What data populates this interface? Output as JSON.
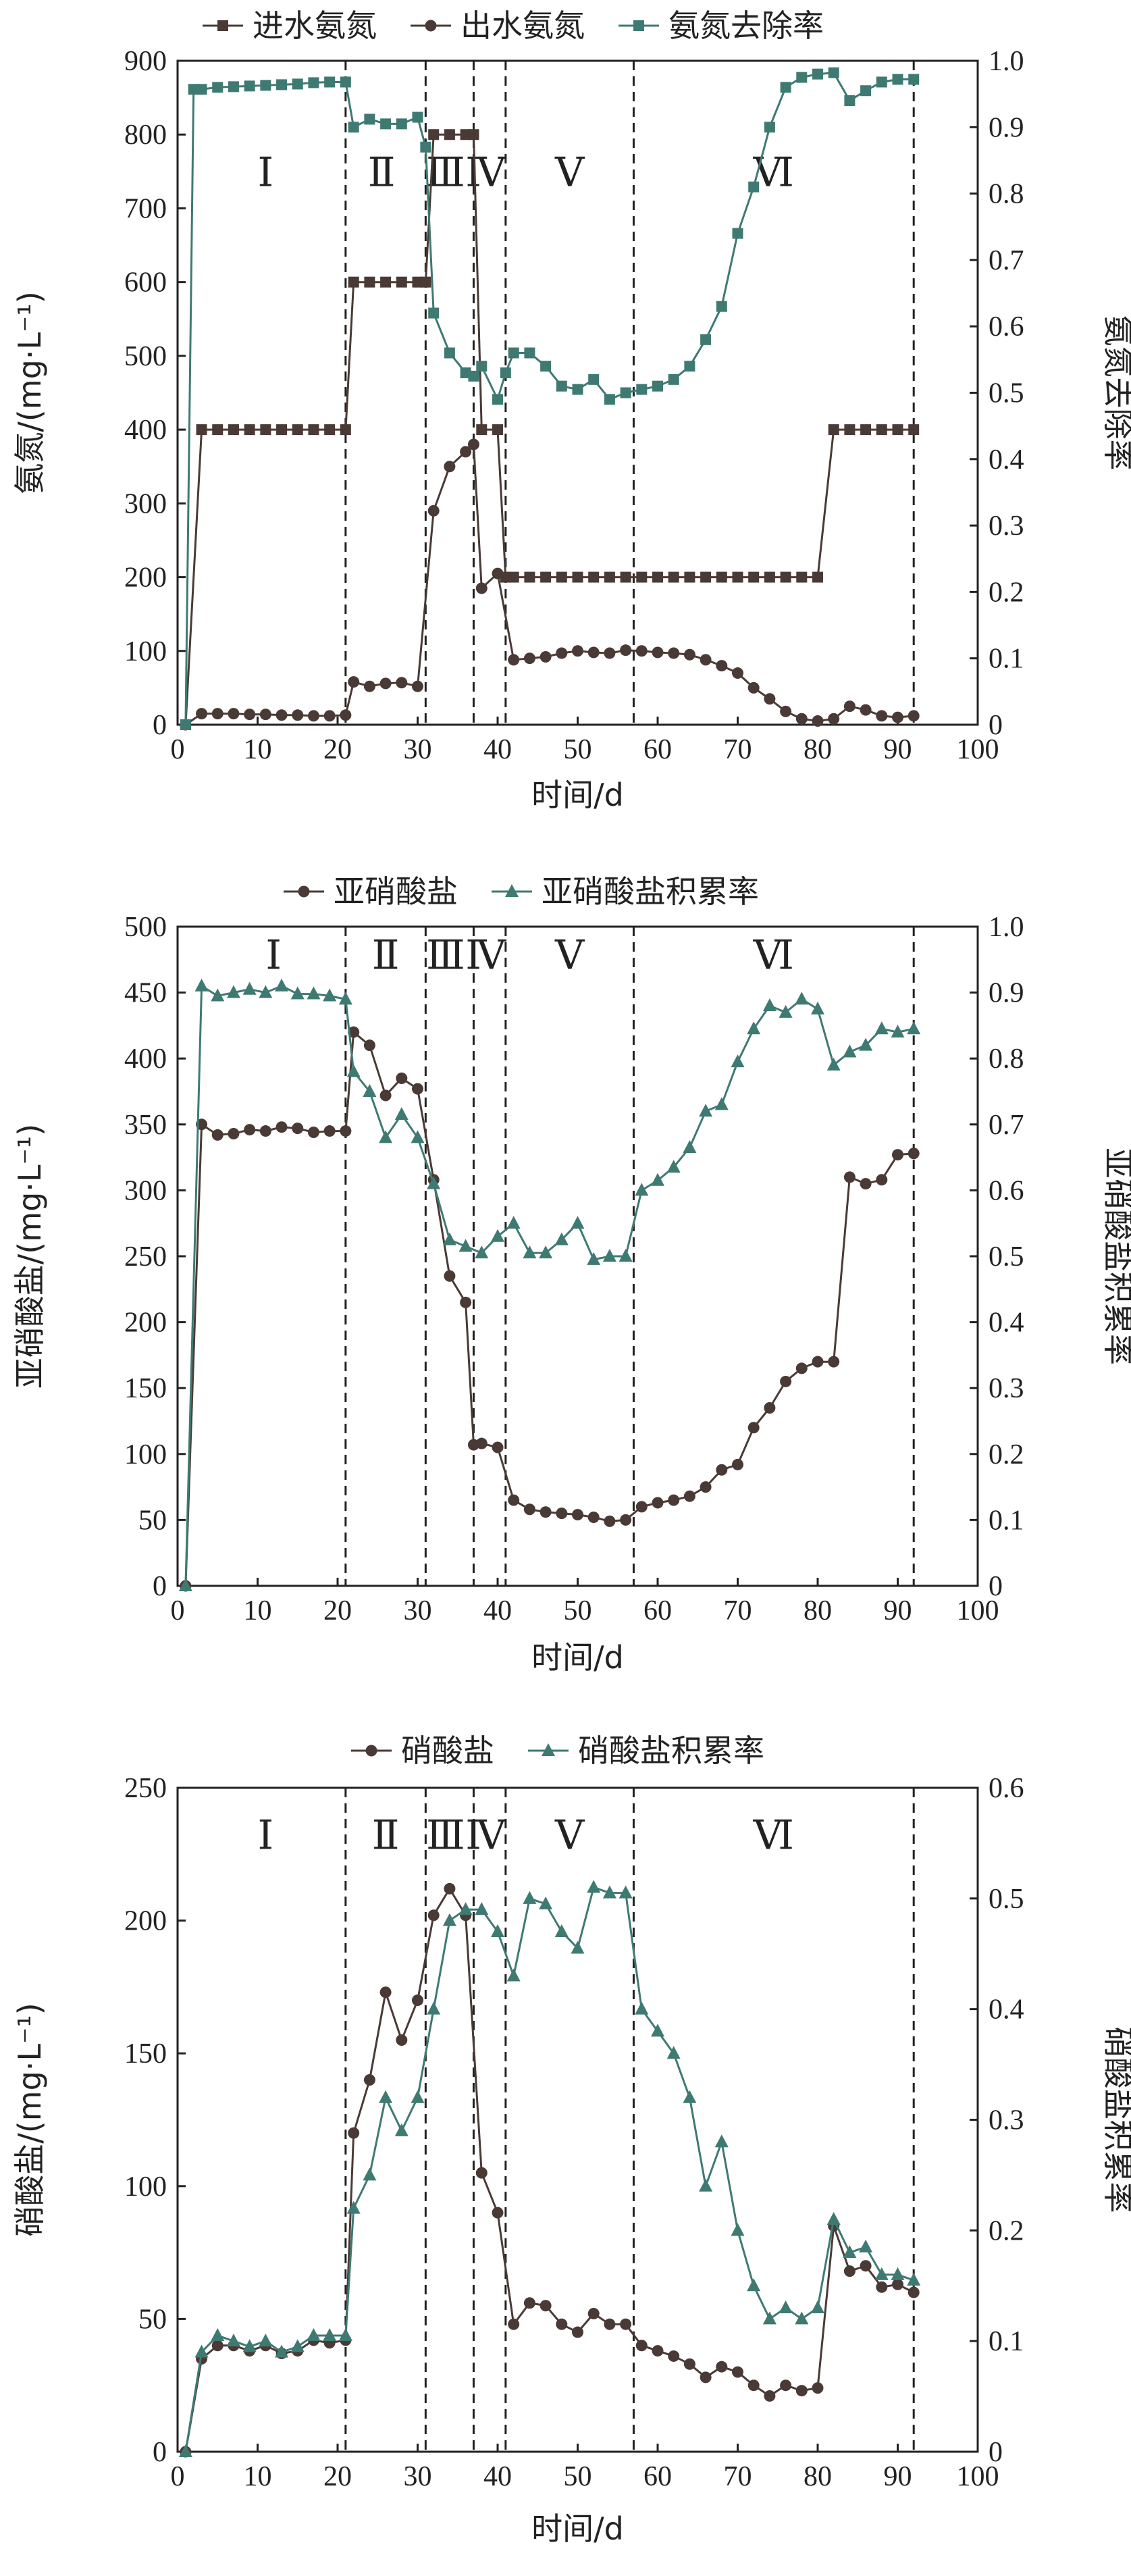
{
  "theme": {
    "color_dark": "#4a3a36",
    "color_teal": "#3f7a72",
    "color_axis": "#222222"
  },
  "chart_data": [
    {
      "type": "line",
      "xlabel": "时间/d",
      "ylabel": "氨氮/(mg·L⁻¹)",
      "ylabel_right": "氨氮去除率",
      "xlim": [
        0,
        100
      ],
      "ylim": [
        0,
        900
      ],
      "ylim_right": [
        0,
        1.0
      ],
      "x_ticks": [
        0,
        10,
        20,
        30,
        40,
        50,
        60,
        70,
        80,
        90,
        100
      ],
      "y_ticks": [
        0,
        100,
        200,
        300,
        400,
        500,
        600,
        700,
        800,
        900
      ],
      "y_right_ticks": [
        "0",
        "0.1",
        "0.2",
        "0.3",
        "0.4",
        "0.5",
        "0.6",
        "0.7",
        "0.8",
        "0.9",
        "1.0"
      ],
      "legend_position": "top",
      "phase_boundaries": [
        21,
        31,
        37,
        41,
        57,
        92
      ],
      "phase_labels": [
        {
          "label": "Ⅰ",
          "x": 11
        },
        {
          "label": "Ⅱ",
          "x": 25.5
        },
        {
          "label": "Ⅲ",
          "x": 33.5
        },
        {
          "label": "Ⅳ",
          "x": 38.5
        },
        {
          "label": "Ⅴ",
          "x": 49
        },
        {
          "label": "Ⅵ",
          "x": 74.5
        }
      ],
      "phase_label_y": 730,
      "series": [
        {
          "name": "进水氨氮",
          "axis": "left",
          "marker": "square",
          "color": "#4a3a36",
          "x": [
            1,
            3,
            5,
            7,
            9,
            11,
            13,
            15,
            17,
            19,
            21,
            22,
            24,
            26,
            28,
            30,
            31,
            32,
            34,
            36,
            37,
            38,
            40,
            41,
            42,
            44,
            46,
            48,
            50,
            52,
            54,
            56,
            58,
            60,
            62,
            64,
            66,
            68,
            70,
            72,
            74,
            76,
            78,
            80,
            82,
            84,
            86,
            88,
            90,
            92
          ],
          "y": [
            0,
            400,
            400,
            400,
            400,
            400,
            400,
            400,
            400,
            400,
            400,
            600,
            600,
            600,
            600,
            600,
            600,
            800,
            800,
            800,
            800,
            400,
            400,
            200,
            200,
            200,
            200,
            200,
            200,
            200,
            200,
            200,
            200,
            200,
            200,
            200,
            200,
            200,
            200,
            200,
            200,
            200,
            200,
            200,
            400,
            400,
            400,
            400,
            400,
            400
          ]
        },
        {
          "name": "出水氨氮",
          "axis": "left",
          "marker": "circle",
          "color": "#4a3a36",
          "x": [
            1,
            3,
            5,
            7,
            9,
            11,
            13,
            15,
            17,
            19,
            21,
            22,
            24,
            26,
            28,
            30,
            32,
            34,
            36,
            37,
            38,
            40,
            42,
            44,
            46,
            48,
            50,
            52,
            54,
            56,
            58,
            60,
            62,
            64,
            66,
            68,
            70,
            72,
            74,
            76,
            78,
            80,
            82,
            84,
            86,
            88,
            90,
            92
          ],
          "y": [
            0,
            15,
            15,
            15,
            14,
            14,
            13,
            13,
            12,
            12,
            13,
            58,
            52,
            56,
            57,
            52,
            290,
            350,
            370,
            380,
            185,
            205,
            88,
            90,
            92,
            97,
            100,
            98,
            97,
            101,
            100,
            98,
            97,
            95,
            88,
            80,
            70,
            50,
            35,
            18,
            8,
            5,
            8,
            25,
            20,
            12,
            10,
            12
          ]
        },
        {
          "name": "氨氮去除率",
          "axis": "right",
          "marker": "square",
          "color": "#3f7a72",
          "x": [
            1,
            2,
            3,
            5,
            7,
            9,
            11,
            13,
            15,
            17,
            19,
            21,
            22,
            24,
            26,
            28,
            30,
            31,
            32,
            34,
            36,
            37,
            38,
            40,
            41,
            42,
            44,
            46,
            48,
            50,
            52,
            54,
            56,
            58,
            60,
            62,
            64,
            66,
            68,
            70,
            72,
            74,
            76,
            78,
            80,
            82,
            84,
            86,
            88,
            90,
            92
          ],
          "y": [
            0,
            0.957,
            0.957,
            0.96,
            0.961,
            0.962,
            0.963,
            0.964,
            0.965,
            0.967,
            0.968,
            0.968,
            0.9,
            0.912,
            0.905,
            0.905,
            0.915,
            0.87,
            0.62,
            0.56,
            0.53,
            0.525,
            0.54,
            0.49,
            0.53,
            0.56,
            0.56,
            0.54,
            0.51,
            0.505,
            0.52,
            0.49,
            0.5,
            0.505,
            0.51,
            0.52,
            0.54,
            0.58,
            0.63,
            0.74,
            0.81,
            0.9,
            0.96,
            0.975,
            0.98,
            0.982,
            0.94,
            0.955,
            0.968,
            0.972,
            0.972
          ]
        }
      ]
    },
    {
      "type": "line",
      "xlabel": "时间/d",
      "ylabel": "亚硝酸盐/(mg·L⁻¹)",
      "ylabel_right": "亚硝酸盐积累率",
      "xlim": [
        0,
        100
      ],
      "ylim": [
        0,
        500
      ],
      "ylim_right": [
        0,
        1.0
      ],
      "x_ticks": [
        0,
        10,
        20,
        30,
        40,
        50,
        60,
        70,
        80,
        90,
        100
      ],
      "y_ticks": [
        0,
        50,
        100,
        150,
        200,
        250,
        300,
        350,
        400,
        450,
        500
      ],
      "y_right_ticks": [
        "0",
        "0.1",
        "0.2",
        "0.3",
        "0.4",
        "0.5",
        "0.6",
        "0.7",
        "0.8",
        "0.9",
        "1.0"
      ],
      "legend_position": "top",
      "phase_boundaries": [
        21,
        31,
        37,
        41,
        57,
        92
      ],
      "phase_labels": [
        {
          "label": "Ⅰ",
          "x": 12
        },
        {
          "label": "Ⅱ",
          "x": 26
        },
        {
          "label": "Ⅲ",
          "x": 33.5
        },
        {
          "label": "Ⅳ",
          "x": 38.5
        },
        {
          "label": "Ⅴ",
          "x": 49
        },
        {
          "label": "Ⅵ",
          "x": 74.5
        }
      ],
      "phase_label_y": 468,
      "series": [
        {
          "name": "亚硝酸盐",
          "axis": "left",
          "marker": "circle",
          "color": "#4a3a36",
          "x": [
            1,
            3,
            5,
            7,
            9,
            11,
            13,
            15,
            17,
            19,
            21,
            22,
            24,
            26,
            28,
            30,
            32,
            34,
            36,
            37,
            38,
            40,
            42,
            44,
            46,
            48,
            50,
            52,
            54,
            56,
            58,
            60,
            62,
            64,
            66,
            68,
            70,
            72,
            74,
            76,
            78,
            80,
            82,
            84,
            86,
            88,
            90,
            92
          ],
          "y": [
            0,
            350,
            342,
            343,
            346,
            345,
            348,
            347,
            344,
            345,
            345,
            420,
            410,
            372,
            385,
            377,
            308,
            235,
            215,
            107,
            108,
            105,
            65,
            58,
            56,
            55,
            54,
            52,
            49,
            50,
            60,
            63,
            65,
            68,
            75,
            88,
            92,
            120,
            135,
            155,
            165,
            170,
            170,
            310,
            305,
            308,
            327,
            328
          ]
        },
        {
          "name": "亚硝酸盐积累率",
          "axis": "right",
          "marker": "triangle",
          "color": "#3f7a72",
          "x": [
            1,
            3,
            5,
            7,
            9,
            11,
            13,
            15,
            17,
            19,
            21,
            22,
            24,
            26,
            28,
            30,
            32,
            34,
            36,
            38,
            40,
            42,
            44,
            46,
            48,
            50,
            52,
            54,
            56,
            58,
            60,
            62,
            64,
            66,
            68,
            70,
            72,
            74,
            76,
            78,
            80,
            82,
            84,
            86,
            88,
            90,
            92
          ],
          "y": [
            0,
            0.91,
            0.895,
            0.9,
            0.905,
            0.9,
            0.91,
            0.898,
            0.898,
            0.895,
            0.89,
            0.78,
            0.75,
            0.68,
            0.715,
            0.68,
            0.61,
            0.525,
            0.515,
            0.505,
            0.53,
            0.55,
            0.505,
            0.505,
            0.525,
            0.55,
            0.495,
            0.5,
            0.5,
            0.6,
            0.615,
            0.635,
            0.665,
            0.72,
            0.73,
            0.795,
            0.845,
            0.88,
            0.87,
            0.89,
            0.875,
            0.79,
            0.81,
            0.82,
            0.845,
            0.84,
            0.845
          ]
        }
      ]
    },
    {
      "type": "line",
      "xlabel": "时间/d",
      "ylabel": "硝酸盐/(mg·L⁻¹)",
      "ylabel_right": "硝酸盐积累率",
      "xlim": [
        0,
        100
      ],
      "ylim": [
        0,
        250
      ],
      "ylim_right": [
        0,
        0.6
      ],
      "x_ticks": [
        0,
        10,
        20,
        30,
        40,
        50,
        60,
        70,
        80,
        90,
        100
      ],
      "y_ticks": [
        0,
        50,
        100,
        150,
        200,
        250
      ],
      "y_right_ticks": [
        "0",
        "0.1",
        "0.2",
        "0.3",
        "0.4",
        "0.5",
        "0.6"
      ],
      "legend_position": "top",
      "phase_boundaries": [
        21,
        31,
        37,
        41,
        57,
        92
      ],
      "phase_labels": [
        {
          "label": "Ⅰ",
          "x": 11
        },
        {
          "label": "Ⅱ",
          "x": 26
        },
        {
          "label": "Ⅲ",
          "x": 33.5
        },
        {
          "label": "Ⅳ",
          "x": 38.5
        },
        {
          "label": "Ⅴ",
          "x": 49
        },
        {
          "label": "Ⅵ",
          "x": 74.5
        }
      ],
      "phase_label_y": 227,
      "series": [
        {
          "name": "硝酸盐",
          "axis": "left",
          "marker": "circle",
          "color": "#4a3a36",
          "x": [
            1,
            3,
            5,
            7,
            9,
            11,
            13,
            15,
            17,
            19,
            21,
            22,
            24,
            26,
            28,
            30,
            32,
            34,
            36,
            38,
            40,
            42,
            44,
            46,
            48,
            50,
            52,
            54,
            56,
            58,
            60,
            62,
            64,
            66,
            68,
            70,
            72,
            74,
            76,
            78,
            80,
            82,
            84,
            86,
            88,
            90,
            92
          ],
          "y": [
            0,
            35,
            40,
            40,
            38,
            40,
            37,
            38,
            42,
            41,
            42,
            120,
            140,
            173,
            155,
            170,
            202,
            212,
            202,
            105,
            90,
            48,
            56,
            55,
            48,
            45,
            52,
            48,
            48,
            40,
            38,
            36,
            33,
            28,
            32,
            30,
            25,
            21,
            25,
            23,
            24,
            85,
            68,
            70,
            62,
            63,
            60
          ]
        },
        {
          "name": "硝酸盐积累率",
          "axis": "right",
          "marker": "triangle",
          "color": "#3f7a72",
          "x": [
            1,
            3,
            5,
            7,
            9,
            11,
            13,
            15,
            17,
            19,
            21,
            22,
            24,
            26,
            28,
            30,
            32,
            34,
            36,
            38,
            40,
            42,
            44,
            46,
            48,
            50,
            52,
            54,
            56,
            58,
            60,
            62,
            64,
            66,
            68,
            70,
            72,
            74,
            76,
            78,
            80,
            82,
            84,
            86,
            88,
            90,
            92
          ],
          "y": [
            0,
            0.09,
            0.105,
            0.1,
            0.095,
            0.1,
            0.09,
            0.095,
            0.105,
            0.105,
            0.105,
            0.22,
            0.25,
            0.32,
            0.29,
            0.32,
            0.4,
            0.48,
            0.49,
            0.49,
            0.47,
            0.43,
            0.5,
            0.495,
            0.47,
            0.455,
            0.51,
            0.505,
            0.505,
            0.4,
            0.38,
            0.36,
            0.32,
            0.24,
            0.28,
            0.2,
            0.15,
            0.12,
            0.13,
            0.12,
            0.13,
            0.21,
            0.18,
            0.185,
            0.16,
            0.16,
            0.155
          ]
        }
      ]
    }
  ]
}
